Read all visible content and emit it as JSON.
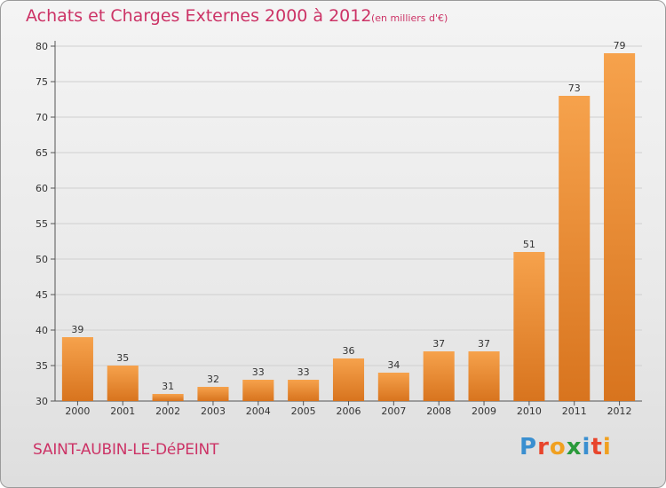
{
  "header": {
    "title": "Achats et Charges Externes 2000 à 2012",
    "subtitle": "(en milliers d'€)"
  },
  "footer": {
    "commune": "SAINT-AUBIN-LE-DéPEINT",
    "logo_letters": [
      "P",
      "r",
      "o",
      "x",
      "i",
      "t",
      "i"
    ]
  },
  "colors": {
    "title": "#cc3366",
    "bar_light": "#f6a24c",
    "bar_dark": "#d8741e",
    "grid": "#d0d0d0",
    "logo": [
      "#3a8fd0",
      "#e8452c",
      "#f0a020",
      "#2a9a3a",
      "#3a8fd0",
      "#e8452c",
      "#f0a020"
    ]
  },
  "chart_data": {
    "type": "bar",
    "categories": [
      "2000",
      "2001",
      "2002",
      "2003",
      "2004",
      "2005",
      "2006",
      "2007",
      "2008",
      "2009",
      "2010",
      "2011",
      "2012"
    ],
    "values": [
      39,
      35,
      31,
      32,
      33,
      33,
      36,
      34,
      37,
      37,
      51,
      73,
      79
    ],
    "ylim": [
      30,
      80
    ],
    "yticks": [
      30,
      35,
      40,
      45,
      50,
      55,
      60,
      65,
      70,
      75,
      80
    ],
    "grid": true,
    "legend": "none"
  }
}
